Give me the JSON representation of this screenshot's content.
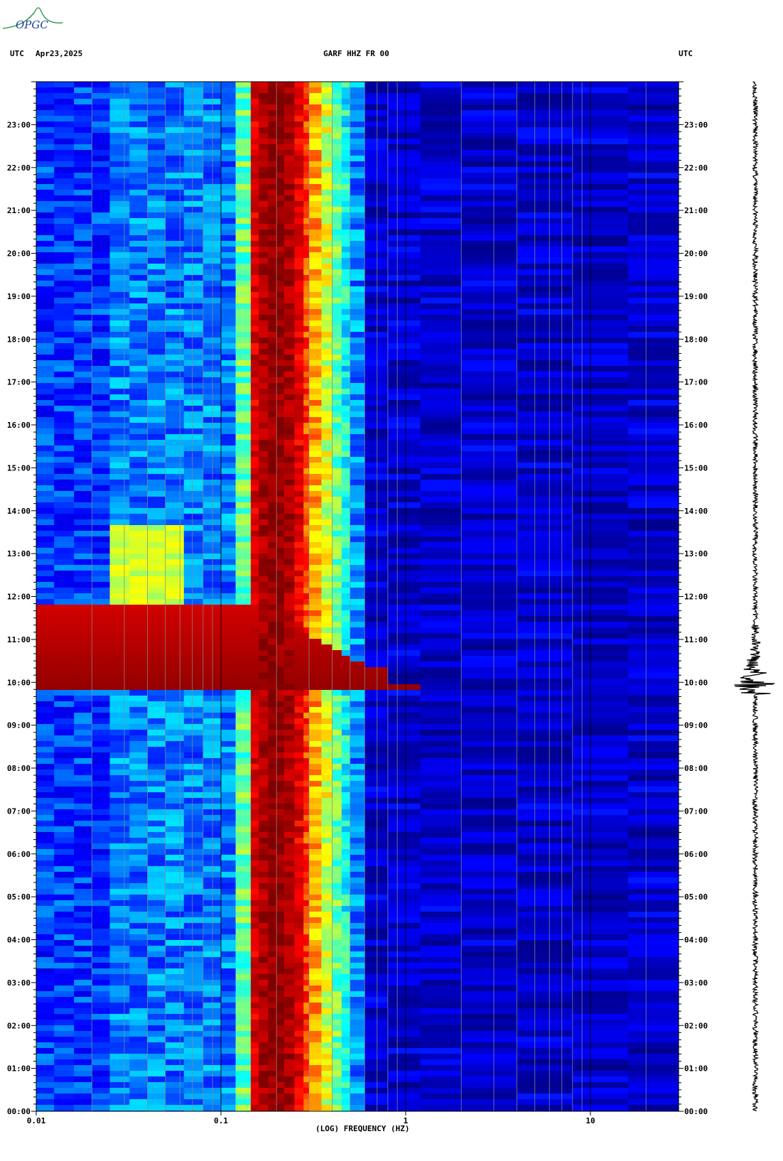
{
  "logo": {
    "text": "OPGC"
  },
  "header": {
    "tz_left": "UTC",
    "date": "Apr23,2025",
    "station": "GARF HHZ FR 00",
    "tz_right": "UTC"
  },
  "chart_data": {
    "type": "heatmap",
    "title": "GARF HHZ FR 00",
    "xlabel": "(LOG) FREQUENCY (HZ)",
    "xscale": "log",
    "xlim": [
      0.01,
      30
    ],
    "x_ticks": [
      "0.01",
      "0.1",
      "1",
      "10"
    ],
    "x_tick_values": [
      0.01,
      0.1,
      1,
      10
    ],
    "ylim_hours": [
      0,
      24
    ],
    "y_ticks": [
      "00:00",
      "01:00",
      "02:00",
      "03:00",
      "04:00",
      "05:00",
      "06:00",
      "07:00",
      "08:00",
      "09:00",
      "10:00",
      "11:00",
      "12:00",
      "13:00",
      "14:00",
      "15:00",
      "16:00",
      "17:00",
      "18:00",
      "19:00",
      "20:00",
      "21:00",
      "22:00",
      "23:00"
    ],
    "colormap": [
      "#00007f",
      "#0000ff",
      "#00ffff",
      "#ffff00",
      "#ff0000",
      "#7f0000"
    ],
    "microseism_band_hz": [
      0.15,
      0.3
    ],
    "event": {
      "time": "09:50",
      "description_hours": [
        9.83,
        11.8
      ]
    },
    "grid": true,
    "trace_side": "right"
  }
}
